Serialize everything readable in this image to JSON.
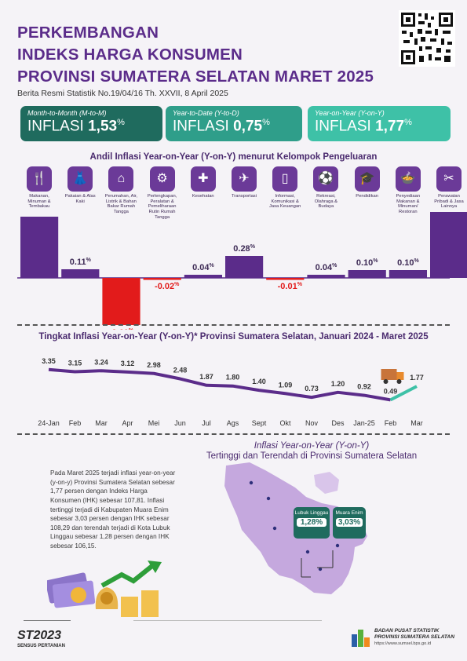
{
  "header": {
    "title_lines": [
      "PERKEMBANGAN",
      "INDEKS HARGA KONSUMEN",
      "PROVINSI SUMATERA SELATAN MARET 2025"
    ],
    "subtitle": "Berita Resmi Statistik No.19/04/16 Th. XXVII, 8 April 2025"
  },
  "cards": [
    {
      "label": "Month-to-Month (M-to-M)",
      "prefix": "INFLASI",
      "value": "1,53",
      "unit": "%",
      "color": "#1f6b5e"
    },
    {
      "label": "Year-to-Date (Y-to-D)",
      "prefix": "INFLASI",
      "value": "0,75",
      "unit": "%",
      "color": "#2f9e8a"
    },
    {
      "label": "Year-on-Year (Y-on-Y)",
      "prefix": "INFLASI",
      "value": "1,77",
      "unit": "%",
      "color": "#3ec1a7"
    }
  ],
  "colors": {
    "purple": "#5b2c8a",
    "red": "#e21b1b",
    "teal": "#3ec1a7",
    "dark_teal": "#1f6b5e"
  },
  "chart_data": [
    {
      "type": "bar",
      "title": "Andil Inflasi Year-on-Year (Y-on-Y) menurut Kelompok Pengeluaran",
      "categories": [
        "Makanan, Minuman & Tembakau",
        "Pakaian & Alas Kaki",
        "Perumahan, Air, Listrik & Bahan Bakar Rumah Tangga",
        "Perlengkapan, Peralatan & Pemeliharaan Rutin Rumah Tangga",
        "Kesehatan",
        "Transportasi",
        "Informasi, Komunikasi & Jasa Keuangan",
        "Rekreasi, Olahraga & Budaya",
        "Pendidikan",
        "Penyediaan Makanan & Minuman/ Restoran",
        "Perawatan Pribadi & Jasa Lainnya"
      ],
      "icons": [
        "food-icon",
        "clothes-icon",
        "house-icon",
        "appliance-icon",
        "health-icon",
        "plane-icon",
        "phone-icon",
        "recreation-icon",
        "graduation-icon",
        "restaurant-icon",
        "tools-icon"
      ],
      "icon_glyphs": [
        "🍴",
        "👗",
        "⌂",
        "⚙",
        "✚",
        "✈",
        "▯",
        "⚽",
        "🎓",
        "🍲",
        "✂"
      ],
      "values": [
        0.78,
        0.11,
        -0.6,
        -0.02,
        0.04,
        0.28,
        -0.01,
        0.04,
        0.1,
        0.1,
        0.95
      ],
      "labels": [
        "0.78",
        "0.11",
        "-0.60",
        "-0.02",
        "0.04",
        "0.28",
        "-0.01",
        "0.04",
        "0.10",
        "0.10",
        "0.95"
      ],
      "unit": "%"
    },
    {
      "type": "line",
      "title": "Tingkat Inflasi Year-on-Year (Y-on-Y)* Provinsi Sumatera Selatan, Januari 2024 - Maret 2025",
      "categories": [
        "24-Jan",
        "Feb",
        "Mar",
        "Apr",
        "Mei",
        "Jun",
        "Jul",
        "Ags",
        "Sept",
        "Okt",
        "Nov",
        "Des",
        "Jan-25",
        "Feb",
        "Mar"
      ],
      "values": [
        3.35,
        3.15,
        3.24,
        3.12,
        2.98,
        2.48,
        1.87,
        1.8,
        1.4,
        1.09,
        0.73,
        1.2,
        0.92,
        0.49,
        1.77
      ],
      "labels": [
        "3.35",
        "3.15",
        "3.24",
        "3.12",
        "2.98",
        "2.48",
        "1.87",
        "1.80",
        "1.40",
        "1.09",
        "0.73",
        "1.20",
        "0.92",
        "0.49",
        "1.77"
      ]
    }
  ],
  "map_section": {
    "title_line1": "Inflasi Year-on-Year (Y-on-Y)",
    "title_line2": "Tertinggi dan Terendah di Provinsi Sumatera Selatan",
    "paragraph": "Pada Maret 2025 terjadi inflasi year-on-year (y-on-y) Provinsi Sumatera Selatan sebesar 1,77 persen dengan Indeks Harga Konsumen (IHK) sebesar 107,81. Inflasi tertinggi terjadi di Kabupaten Muara Enim sebesar 3,03 persen dengan IHK sebesar 108,29 dan terendah terjadi di Kota Lubuk Linggau sebesar 1,28 persen dengan IHK sebesar 106,15.",
    "lowest": {
      "name": "Lubuk Linggau",
      "value": "1,28%"
    },
    "highest": {
      "name": "Muara Enim",
      "value": "3,03%"
    }
  },
  "footer": {
    "st_logo": "ST2023",
    "st_sub": "SENSUS PERTANIAN",
    "bps_line1": "BADAN PUSAT STATISTIK",
    "bps_line2": "PROVINSI SUMATERA SELATAN",
    "bps_url": "https://www.sumsel.bps.go.id"
  }
}
